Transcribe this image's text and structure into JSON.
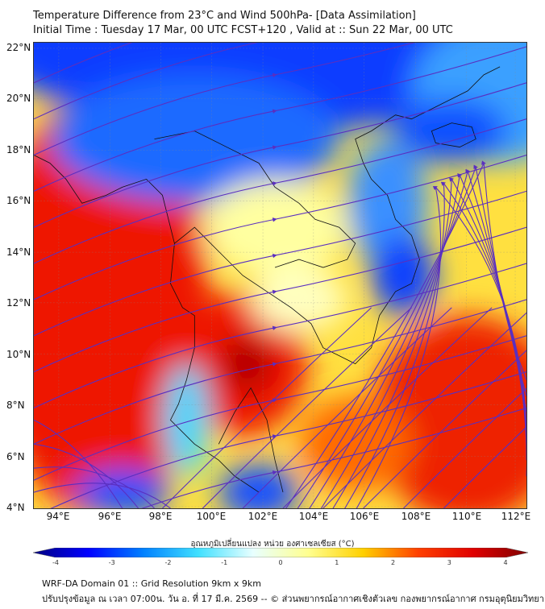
{
  "title": {
    "line1": "Temperature Difference from 23°C and Wind 500hPa- [Data Assimilation]",
    "line2": "Initial Time : Tuesday 17 Mar, 00 UTC FCST+120 , Valid at ::  Sun 22 Mar, 00 UTC"
  },
  "map": {
    "lat_labels": [
      "22°N",
      "20°N",
      "18°N",
      "16°N",
      "14°N",
      "12°N",
      "10°N",
      "8°N",
      "6°N",
      "4°N"
    ],
    "lon_labels": [
      "94°E",
      "96°E",
      "98°E",
      "100°E",
      "102°E",
      "104°E",
      "106°E",
      "108°E",
      "110°E",
      "112°E"
    ],
    "streamline_color": "#5a2fc0"
  },
  "colorbar": {
    "label": "อุณหภูมิเปลี่ยนแปลง หน่วย องศาเซลเซียส (°C)",
    "ticks": [
      "-4",
      "-3",
      "-2",
      "-1",
      "0",
      "1",
      "2",
      "3",
      "4"
    ],
    "range": [
      -4,
      4
    ],
    "colors": [
      "#00007f",
      "#0000ff",
      "#0080ff",
      "#40e0ff",
      "#e8ffff",
      "#ffff90",
      "#ffd000",
      "#ff4000",
      "#e00000",
      "#7f0000"
    ]
  },
  "footer": {
    "line1": "WRF-DA Domain 01 :: Grid Resolution 9km x 9km",
    "line2": "ปรับปรุงข้อมูล ณ เวลา 07:00น. วัน อ. ที่ 17 มี.ค. 2569 -- © ส่วนพยากรณ์อากาศเชิงตัวเลข กองพยากรณ์อากาศ กรมอุตุนิยมวิทยา"
  }
}
